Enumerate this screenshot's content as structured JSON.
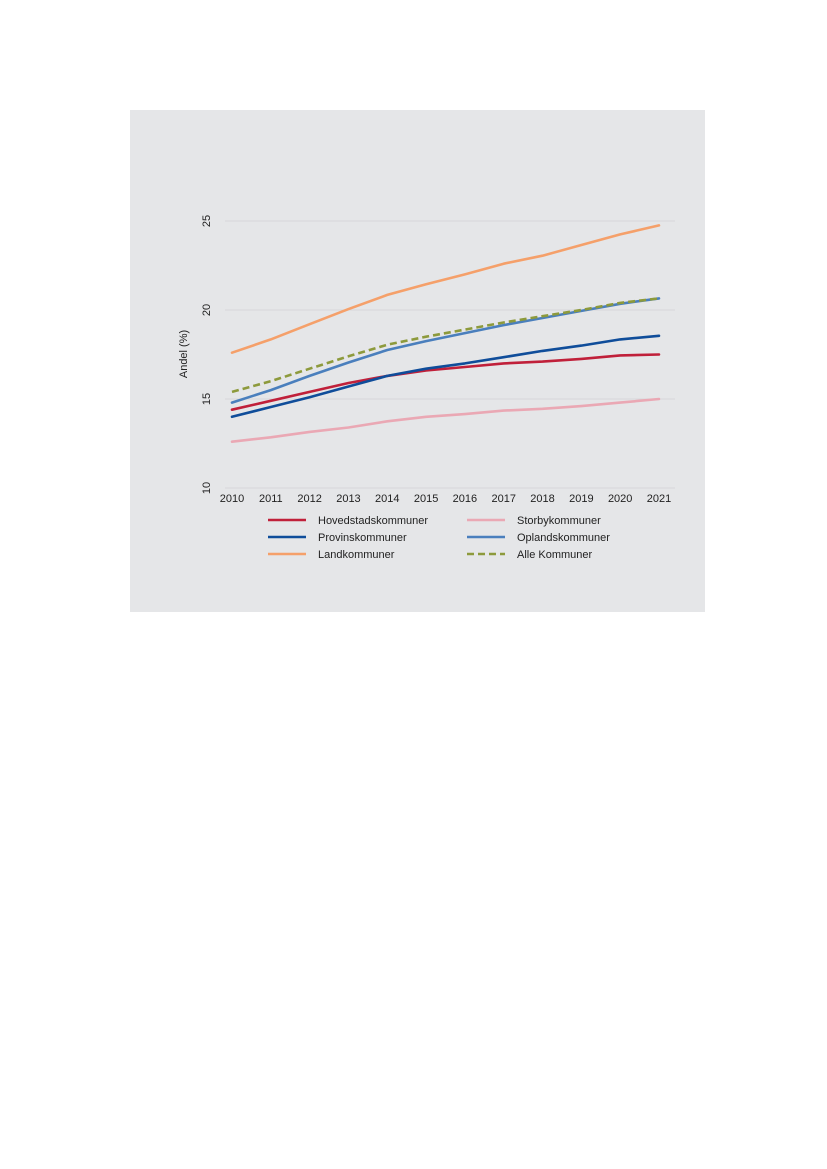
{
  "chart_data": {
    "type": "line",
    "title": "",
    "xlabel": "",
    "ylabel": "Andel (%)",
    "x": [
      2010,
      2011,
      2012,
      2013,
      2014,
      2015,
      2016,
      2017,
      2018,
      2019,
      2020,
      2021
    ],
    "x_labels": [
      "2010",
      "2011",
      "2012",
      "2013",
      "2014",
      "2015",
      "2016",
      "2017",
      "2018",
      "2019",
      "2020",
      "2021"
    ],
    "ylim": [
      10,
      25
    ],
    "yticks": [
      10,
      15,
      20,
      25
    ],
    "ytick_labels": [
      "10",
      "15",
      "20",
      "25"
    ],
    "grid": true,
    "legend_position": "bottom",
    "series": [
      {
        "name": "Hovedstadskommuner",
        "color": "#c0203a",
        "dash": false,
        "values": [
          14.4,
          14.9,
          15.4,
          15.9,
          16.3,
          16.6,
          16.8,
          17.0,
          17.1,
          17.25,
          17.45,
          17.5
        ]
      },
      {
        "name": "Storbykommuner",
        "color": "#eaa8b4",
        "dash": false,
        "values": [
          12.6,
          12.85,
          13.15,
          13.4,
          13.75,
          14.0,
          14.15,
          14.35,
          14.45,
          14.6,
          14.8,
          15.0
        ]
      },
      {
        "name": "Provinskommuner",
        "color": "#0f4d9a",
        "dash": false,
        "values": [
          14.0,
          14.55,
          15.1,
          15.7,
          16.3,
          16.7,
          17.0,
          17.35,
          17.7,
          18.0,
          18.35,
          18.55
        ]
      },
      {
        "name": "Oplandskommuner",
        "color": "#4a7fbd",
        "dash": false,
        "values": [
          14.8,
          15.5,
          16.3,
          17.05,
          17.75,
          18.25,
          18.7,
          19.15,
          19.55,
          19.95,
          20.35,
          20.65
        ]
      },
      {
        "name": "Landkommuner",
        "color": "#f5a06a",
        "dash": false,
        "values": [
          17.6,
          18.35,
          19.2,
          20.05,
          20.85,
          21.45,
          22.0,
          22.6,
          23.05,
          23.65,
          24.25,
          24.75
        ]
      },
      {
        "name": "Alle Kommuner",
        "color": "#8d9a3c",
        "dash": true,
        "values": [
          15.4,
          16.0,
          16.7,
          17.4,
          18.05,
          18.5,
          18.9,
          19.3,
          19.65,
          20.0,
          20.4,
          20.65
        ]
      }
    ]
  }
}
